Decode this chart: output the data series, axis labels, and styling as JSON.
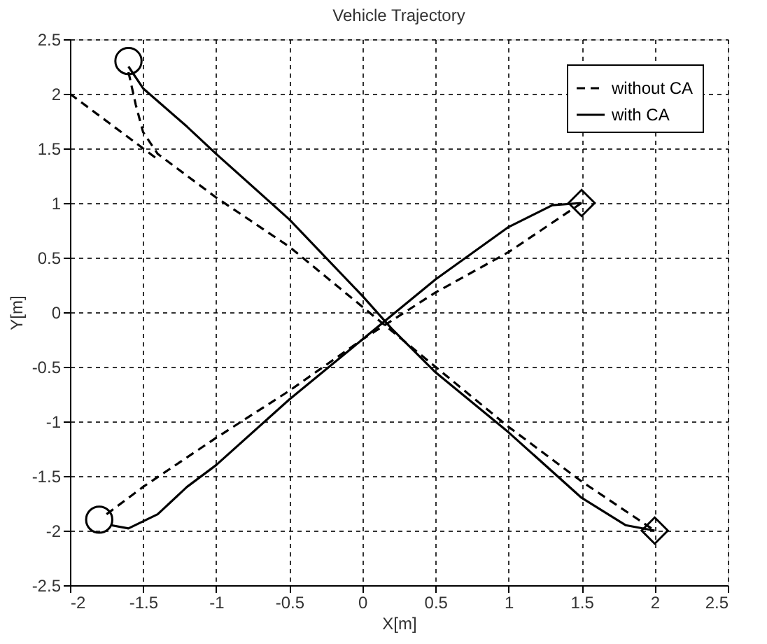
{
  "chart_data": {
    "type": "line",
    "title": "Vehicle Trajectory",
    "xlabel": "X[m]",
    "ylabel": "Y[m]",
    "xlim": [
      -2,
      2.5
    ],
    "ylim": [
      -2.5,
      2.5
    ],
    "xticks": [
      -2,
      -1.5,
      -1,
      -0.5,
      0,
      0.5,
      1,
      1.5,
      2,
      2.5
    ],
    "yticks": [
      -2.5,
      -2,
      -1.5,
      -1,
      -0.5,
      0,
      0.5,
      1,
      1.5,
      2,
      2.5
    ],
    "grid": true,
    "legend": "top right",
    "legend_title": null,
    "series": [
      {
        "name": "without CA",
        "color": "#000000",
        "line_style": "dashed",
        "x": [
          -1.6,
          -1.55,
          -1.5,
          -1.4,
          -1.2,
          -1,
          -0.5,
          0,
          0.5,
          1,
          1.5,
          2
        ],
        "values": [
          2.2,
          1.9,
          1.65,
          1.45,
          1.25,
          1.05,
          0.6,
          0.05,
          -0.5,
          -1.05,
          -1.55,
          -2
        ]
      },
      {
        "name": "with CA",
        "color": "#000000",
        "line_style": "solid",
        "x": [
          -1.6,
          -1.5,
          -1.2,
          -1,
          -0.5,
          0,
          0.2,
          0.5,
          1,
          1.5,
          1.8,
          2
        ],
        "values": [
          2.25,
          2.05,
          1.7,
          1.45,
          0.85,
          0.15,
          -0.15,
          -0.55,
          -1.1,
          -1.7,
          -1.95,
          -2
        ]
      },
      {
        "color": "#000000",
        "line_style": "dashed",
        "x": [
          -1.75,
          -1.5,
          -1,
          -0.5,
          0,
          0.5,
          1,
          1.5
        ],
        "values": [
          -1.85,
          -1.6,
          -1.15,
          -0.72,
          -0.25,
          0.18,
          0.55,
          1
        ]
      },
      {
        "color": "#000000",
        "line_style": "solid",
        "x": [
          -1.72,
          -1.6,
          -1.4,
          -1.2,
          -1,
          -0.5,
          0,
          0.5,
          1,
          1.3,
          1.5
        ],
        "values": [
          -1.95,
          -1.98,
          -1.85,
          -1.6,
          -1.4,
          -0.8,
          -0.25,
          0.3,
          0.78,
          0.98,
          1
        ]
      },
      {
        "color": "#000000",
        "line_style": "dashed",
        "x": [
          -2,
          -1.4
        ],
        "values": [
          2,
          1.4
        ]
      },
      {
        "type": "scatter",
        "marker": "circle",
        "color": "#000000",
        "x": [
          -1.6,
          -1.8
        ],
        "values": [
          2.3,
          -1.9
        ]
      },
      {
        "type": "scatter",
        "marker": "diamond",
        "color": "#000000",
        "x": [
          1.5,
          2
        ],
        "values": [
          1,
          -2
        ]
      }
    ]
  }
}
